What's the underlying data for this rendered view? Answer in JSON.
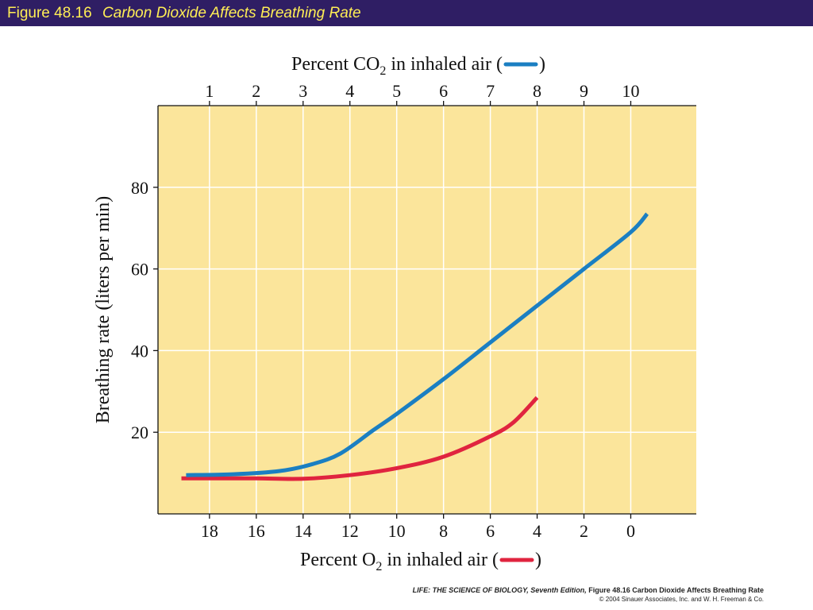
{
  "header": {
    "figure_number": "Figure 48.16",
    "figure_title": "Carbon Dioxide Affects Breathing Rate"
  },
  "footer": {
    "book_title": "LIFE: THE SCIENCE OF BIOLOGY, Seventh Edition,",
    "figure_ref": "Figure 48.16 Carbon Dioxide Affects Breathing Rate",
    "copyright": "© 2004 Sinauer Associates, Inc. and W. H. Freeman & Co."
  },
  "colors": {
    "header_bg": "#2f1e64",
    "header_text": "#ffee55",
    "plot_bg": "#fbe59b",
    "gridline": "#ffffff",
    "co2_series": "#1b7fc2",
    "o2_series": "#e0243f"
  },
  "chart_data": {
    "type": "line",
    "ylabel": "Breathing rate (liters per min)",
    "yticks": [
      20,
      40,
      60,
      80
    ],
    "ylim": [
      0,
      100
    ],
    "grid": true,
    "top_axis": {
      "label": "Percent CO2 in inhaled air (",
      "label_suffix": ")",
      "ticks": [
        1,
        2,
        3,
        4,
        5,
        6,
        7,
        8,
        9,
        10
      ],
      "range": [
        -0.1,
        11.4
      ]
    },
    "bottom_axis": {
      "label": "Percent O2 in inhaled air (",
      "label_suffix": ")",
      "ticks": [
        18,
        16,
        14,
        12,
        10,
        8,
        6,
        4,
        2,
        0
      ],
      "range": [
        20.2,
        -2.8
      ]
    },
    "series": [
      {
        "name": "Percent CO2 in inhaled air",
        "color": "#1b7fc2",
        "axis": "top",
        "points": [
          [
            0.5,
            9.5
          ],
          [
            1.5,
            9.7
          ],
          [
            2.5,
            10.5
          ],
          [
            3.2,
            12.2
          ],
          [
            3.8,
            14.8
          ],
          [
            4.5,
            20.5
          ],
          [
            5.0,
            24.5
          ],
          [
            6.0,
            33.0
          ],
          [
            7.0,
            42.0
          ],
          [
            8.0,
            51.0
          ],
          [
            9.0,
            60.0
          ],
          [
            10.0,
            69.0
          ],
          [
            10.35,
            73.5
          ]
        ]
      },
      {
        "name": "Percent O2 in inhaled air",
        "color": "#e0243f",
        "axis": "bottom",
        "points": [
          [
            19.2,
            8.7
          ],
          [
            18,
            8.7
          ],
          [
            16,
            8.7
          ],
          [
            14,
            8.6
          ],
          [
            12,
            9.5
          ],
          [
            10,
            11.2
          ],
          [
            8,
            14.0
          ],
          [
            6,
            19.0
          ],
          [
            5,
            22.5
          ],
          [
            4,
            28.5
          ]
        ]
      }
    ]
  }
}
